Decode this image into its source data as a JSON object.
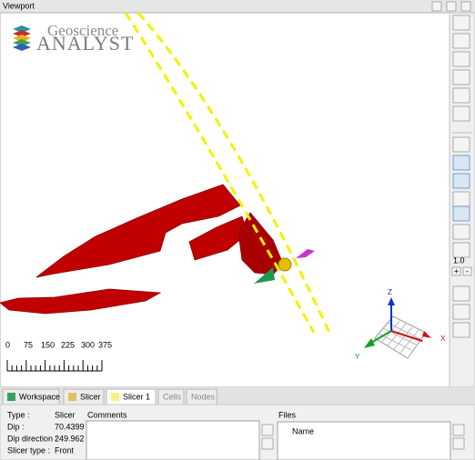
{
  "title_bar": {
    "title": "Viewport"
  },
  "logo": {
    "line1": "Geoscience",
    "line2": "ANALYST"
  },
  "scale_bar": {
    "labels": [
      0,
      75,
      150,
      225,
      300,
      375
    ]
  },
  "axes": {
    "z": "Z",
    "x": "X",
    "y": "Y"
  },
  "toolbar": {
    "value": "1.0",
    "plus": "+",
    "minus": "-"
  },
  "tabs": [
    "Workspace",
    "Slicer",
    "Slicer 1",
    "Cells",
    "Nodes"
  ],
  "properties": {
    "rows": [
      [
        "Type :",
        "Slicer"
      ],
      [
        "Dip :",
        "70.4399"
      ],
      [
        "Dip direction :",
        "249.962"
      ],
      [
        "Slicer type :",
        "Front"
      ]
    ]
  },
  "comments": {
    "label": "Comments"
  },
  "files": {
    "label": "Files",
    "column": "Name"
  }
}
